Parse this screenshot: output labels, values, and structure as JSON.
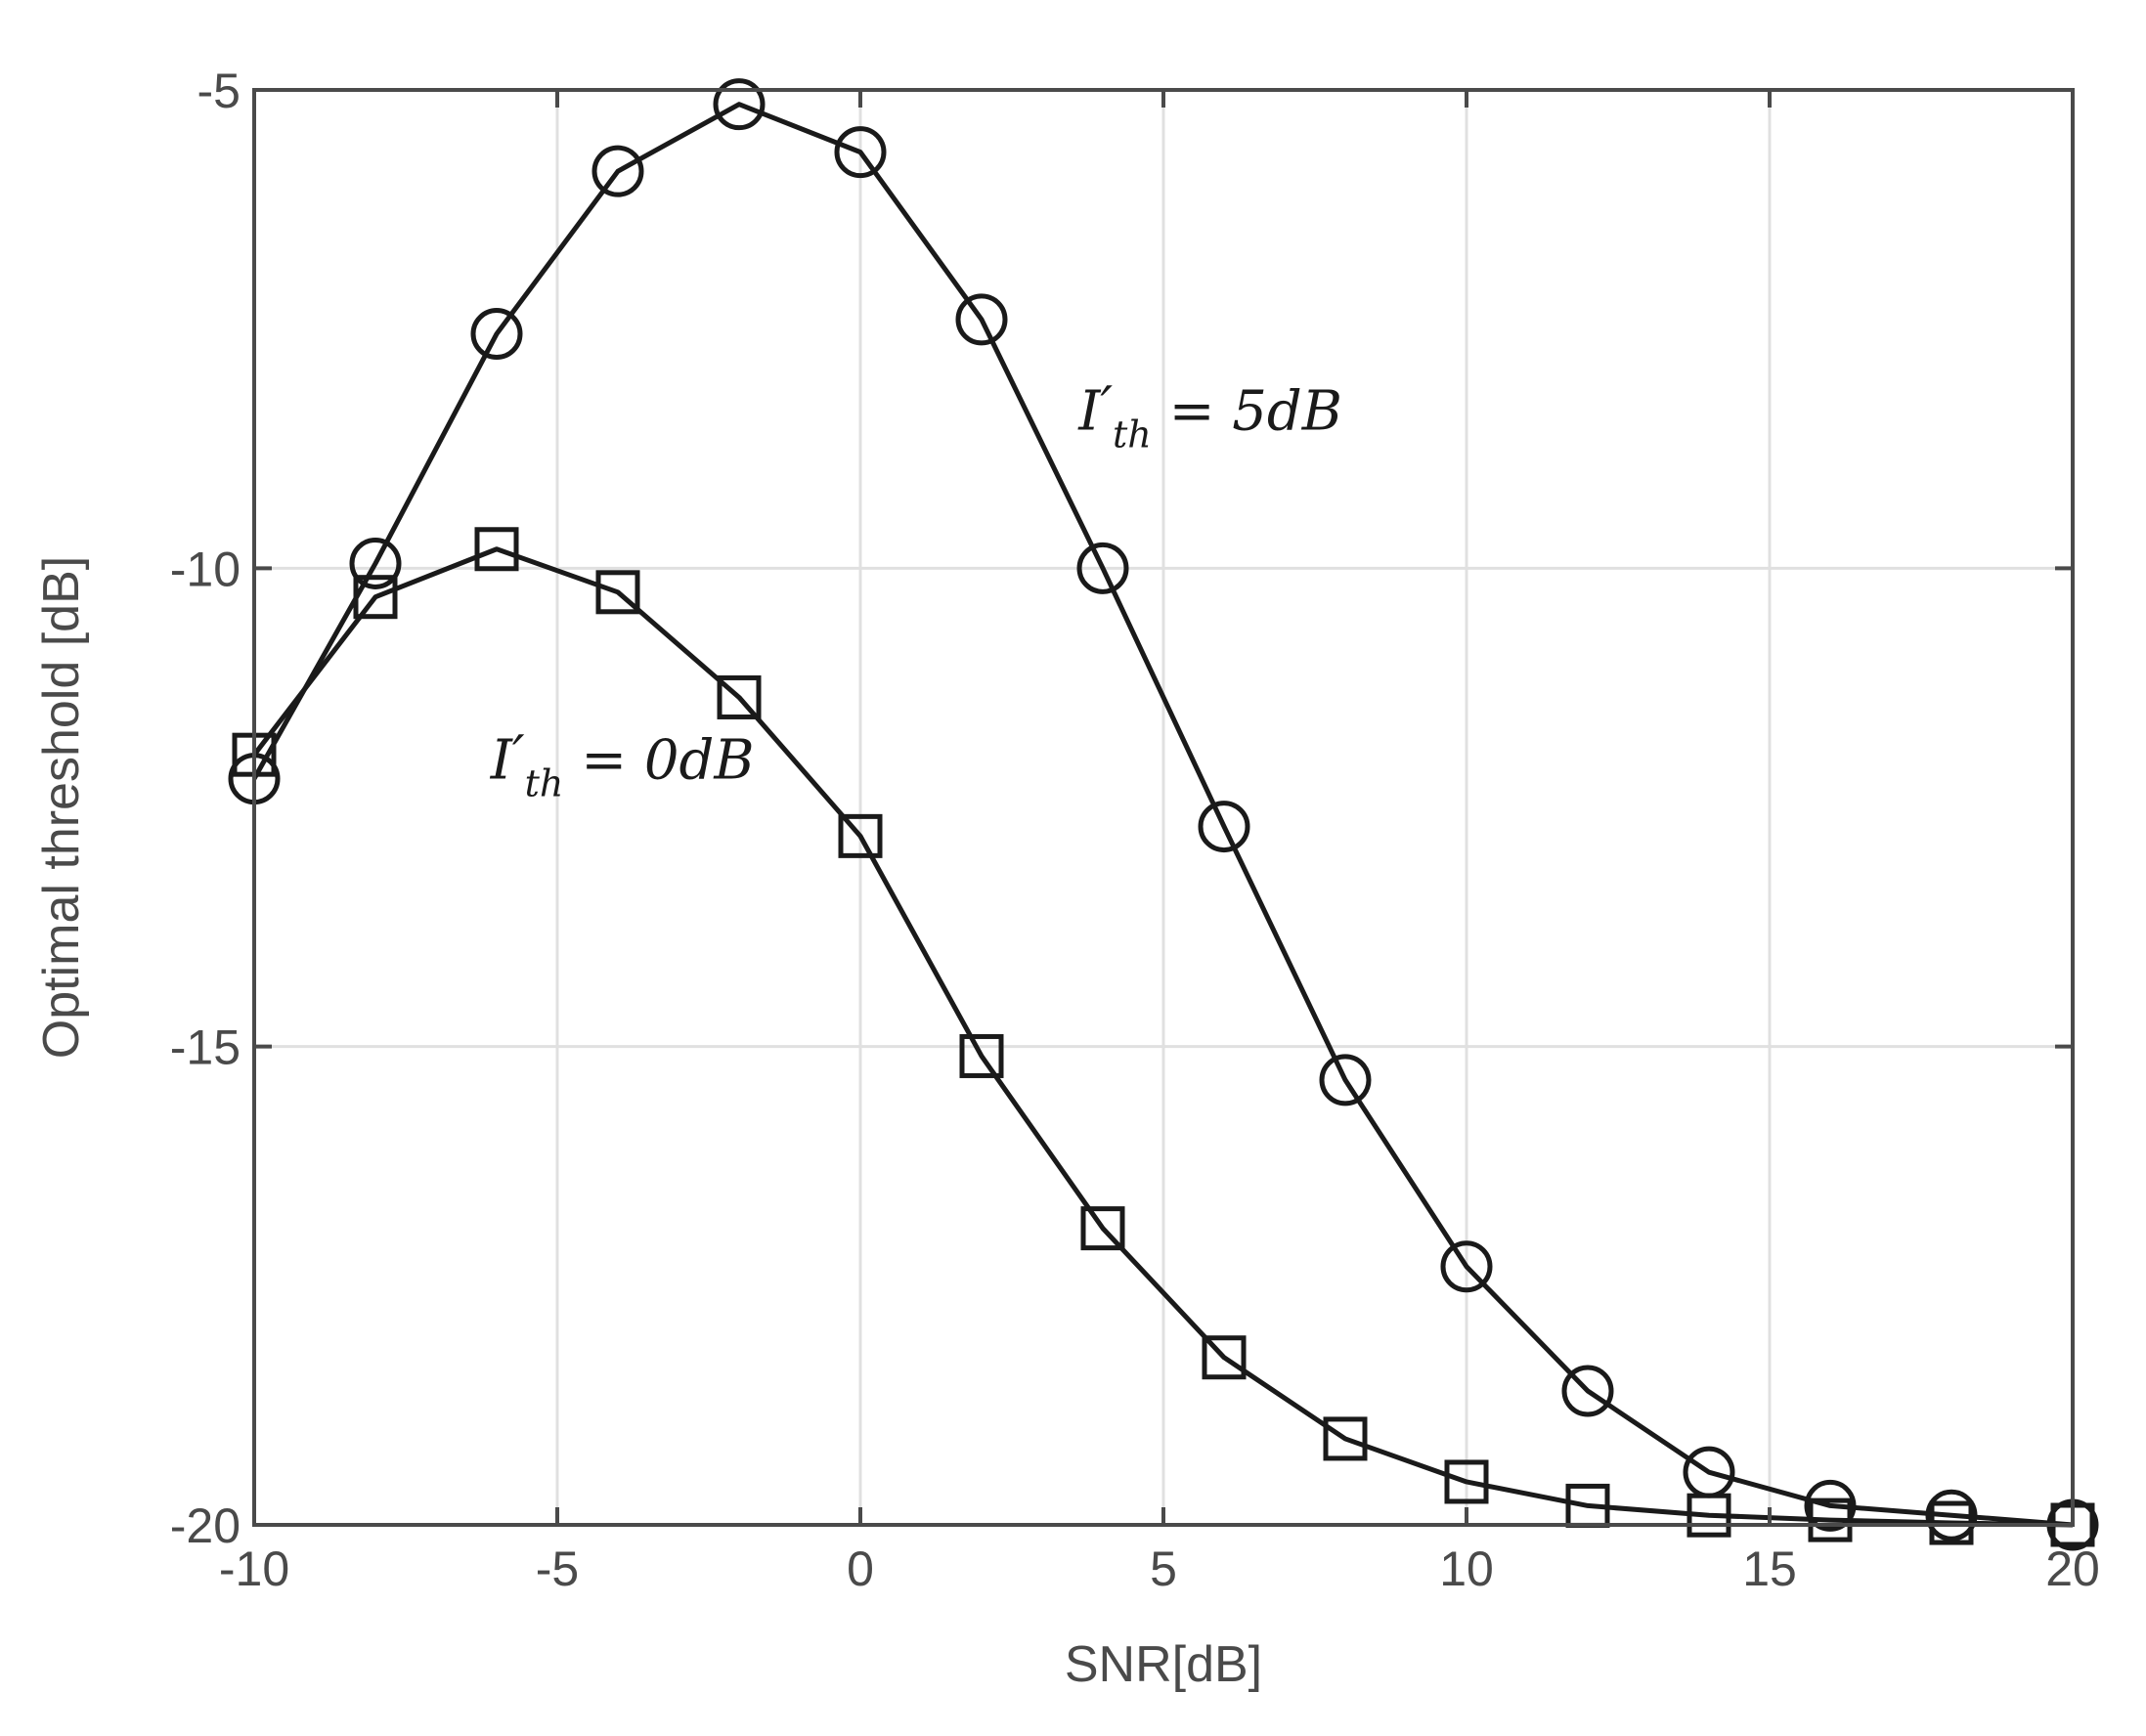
{
  "chart_data": {
    "type": "line",
    "title": "",
    "xlabel": "SNR[dB]",
    "ylabel": "Optimal threshold [dB]",
    "xlim": [
      -10,
      20
    ],
    "ylim": [
      -20,
      -5
    ],
    "grid": true,
    "x_ticks": [
      -10,
      -5,
      0,
      5,
      10,
      15,
      20
    ],
    "y_ticks": [
      -5,
      -10,
      -15,
      -20
    ],
    "x_tick_labels": [
      "-10",
      "-5",
      "0",
      "5",
      "10",
      "15",
      "20"
    ],
    "y_tick_labels": [
      "-5",
      "-10",
      "-15",
      "-20"
    ],
    "x": [
      -10,
      -8,
      -6,
      -4,
      -2,
      0,
      2,
      4,
      6,
      8,
      10,
      12,
      14,
      16,
      18,
      20
    ],
    "series": [
      {
        "name": "I'th = 5dB",
        "marker": "circle",
        "values": [
          -12.2,
          -9.95,
          -7.55,
          -5.85,
          -5.15,
          -5.65,
          -7.4,
          -10.0,
          -12.7,
          -15.35,
          -17.3,
          -18.6,
          -19.45,
          -19.8,
          -19.9,
          -20.0
        ]
      },
      {
        "name": "I'th = 0dB",
        "marker": "square",
        "values": [
          -11.95,
          -10.3,
          -9.8,
          -10.25,
          -11.35,
          -12.8,
          -15.1,
          -16.9,
          -18.25,
          -19.1,
          -19.55,
          -19.8,
          -19.9,
          -19.95,
          -19.98,
          -20.0
        ]
      }
    ],
    "annotations": [
      {
        "id": "a5",
        "main": "I",
        "prime": "′",
        "sub": "th",
        "rest": " = 5dB",
        "x": 3.6,
        "y": -8.55
      },
      {
        "id": "a0",
        "main": "I",
        "prime": "′",
        "sub": "th",
        "rest": " = 0dB",
        "x": -6.1,
        "y": -12.2
      }
    ],
    "colors": {
      "series": "#1a1a1a",
      "axes": "#4a4a4a",
      "grid": "#e0e0e0"
    }
  }
}
